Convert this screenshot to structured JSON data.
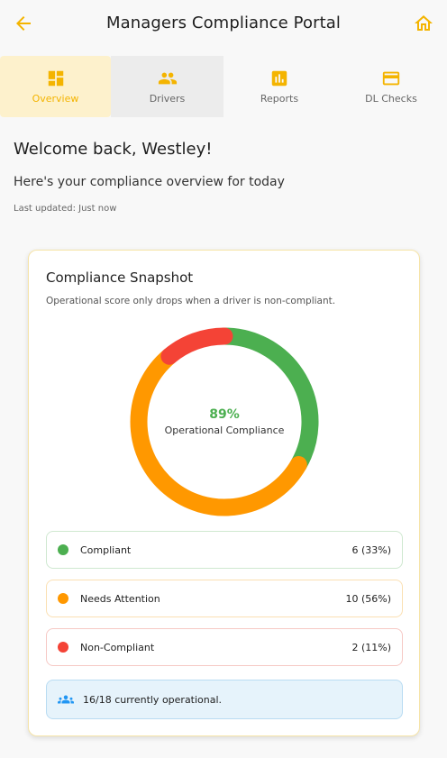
{
  "appbar": {
    "title": "Managers Compliance Portal",
    "back_icon": "arrow-left-icon",
    "home_icon": "home-icon",
    "accent": "#f4b400"
  },
  "tabs": [
    {
      "label": "Overview",
      "icon": "dashboard-icon",
      "active": true
    },
    {
      "label": "Drivers",
      "icon": "people-icon"
    },
    {
      "label": "Reports",
      "icon": "bar-chart-icon"
    },
    {
      "label": "DL Checks",
      "icon": "card-icon"
    }
  ],
  "welcome": {
    "heading": "Welcome back, Westley!",
    "subtitle": "Here's your compliance overview for today",
    "updated": "Last updated: Just now"
  },
  "snapshot": {
    "title": "Compliance Snapshot",
    "subtitle": "Operational score only drops when a driver is non-compliant.",
    "score": "89%",
    "score_label": "Operational Compliance",
    "legend": [
      {
        "name": "Compliant",
        "value": "6 (33%)",
        "color": "#4caf50",
        "border": "#cfe8d0"
      },
      {
        "name": "Needs Attention",
        "value": "10 (56%)",
        "color": "#ff9800",
        "border": "#fbe0b3"
      },
      {
        "name": "Non-Compliant",
        "value": "2 (11%)",
        "color": "#f44336",
        "border": "#f6c9c5"
      }
    ],
    "operational": "16/18 currently operational."
  },
  "chart_data": {
    "type": "pie",
    "categories": [
      "Compliant",
      "Needs Attention",
      "Non-Compliant"
    ],
    "values": [
      6,
      10,
      2
    ],
    "colors": [
      "#4caf50",
      "#ff9800",
      "#f44336"
    ]
  }
}
